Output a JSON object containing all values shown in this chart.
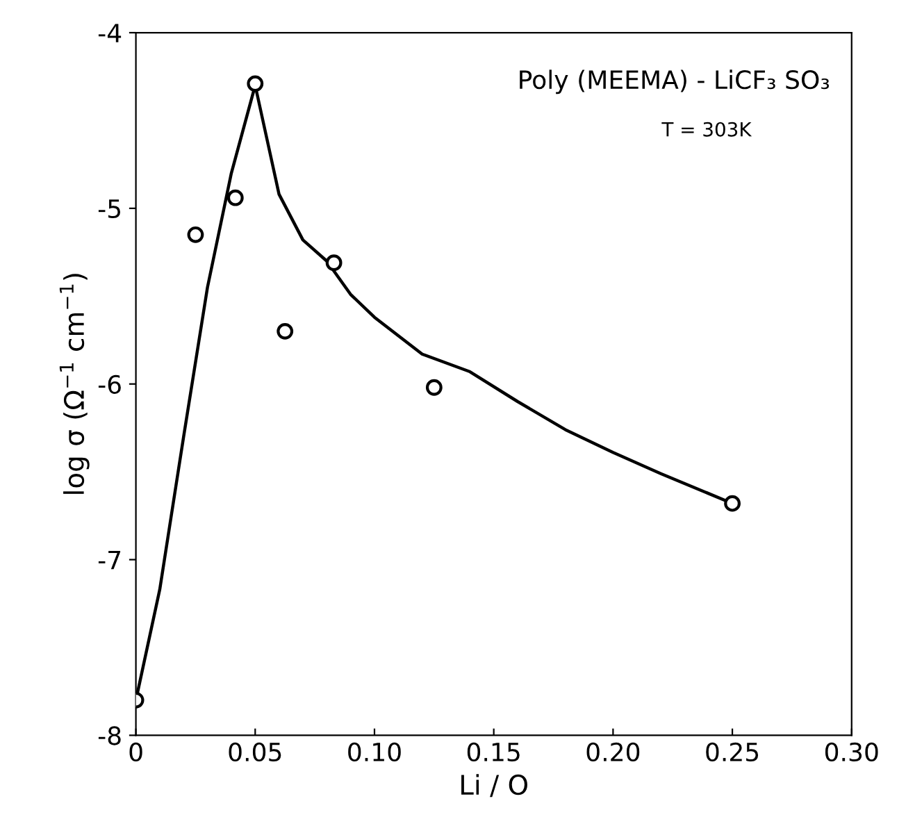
{
  "chart_data": {
    "type": "scatter",
    "xlabel": "Li / O",
    "ylabel": "log σ (Ω$^{−1}$ cm$^{−1}$)",
    "annotations": [
      "Poly (MEEMA) - LiCF₃ SO₃",
      "T = 303K"
    ],
    "series": [
      {
        "color": "#000000",
        "marker": "circle",
        "x": [
          0,
          0.025,
          0.0417,
          0.05,
          0.0625,
          0.083,
          0.125,
          0.25
        ],
        "values": [
          -7.8,
          -5.15,
          -4.94,
          -4.29,
          -5.7,
          -5.31,
          -6.02,
          -6.68
        ]
      },
      {
        "type": "line",
        "color": "#000000",
        "marker": "none",
        "line_style": "solid",
        "x": [
          0,
          0.01,
          0.02,
          0.03,
          0.04,
          0.05,
          0.06,
          0.07,
          0.08,
          0.09,
          0.1,
          0.12,
          0.14,
          0.16,
          0.18,
          0.2,
          0.22,
          0.25
        ],
        "values": [
          -7.8,
          -7.17,
          -6.3,
          -5.45,
          -4.8,
          -4.3,
          -4.92,
          -5.18,
          -5.3,
          -5.49,
          -5.62,
          -5.83,
          -5.93,
          -6.1,
          -6.26,
          -6.39,
          -6.51,
          -6.68
        ]
      }
    ],
    "xlim": [
      0,
      0.3
    ],
    "ylim": [
      -8,
      -4
    ],
    "xticks": [
      0,
      0.05,
      {
        "value": 0.1,
        "label": "0.10"
      },
      0.15,
      {
        "value": 0.2,
        "label": "0.20"
      },
      0.25,
      {
        "value": 0.3,
        "label": "0.30"
      }
    ],
    "yticks": [
      -8,
      -7,
      -6,
      -5,
      -4
    ],
    "grid": false,
    "legend": false
  }
}
